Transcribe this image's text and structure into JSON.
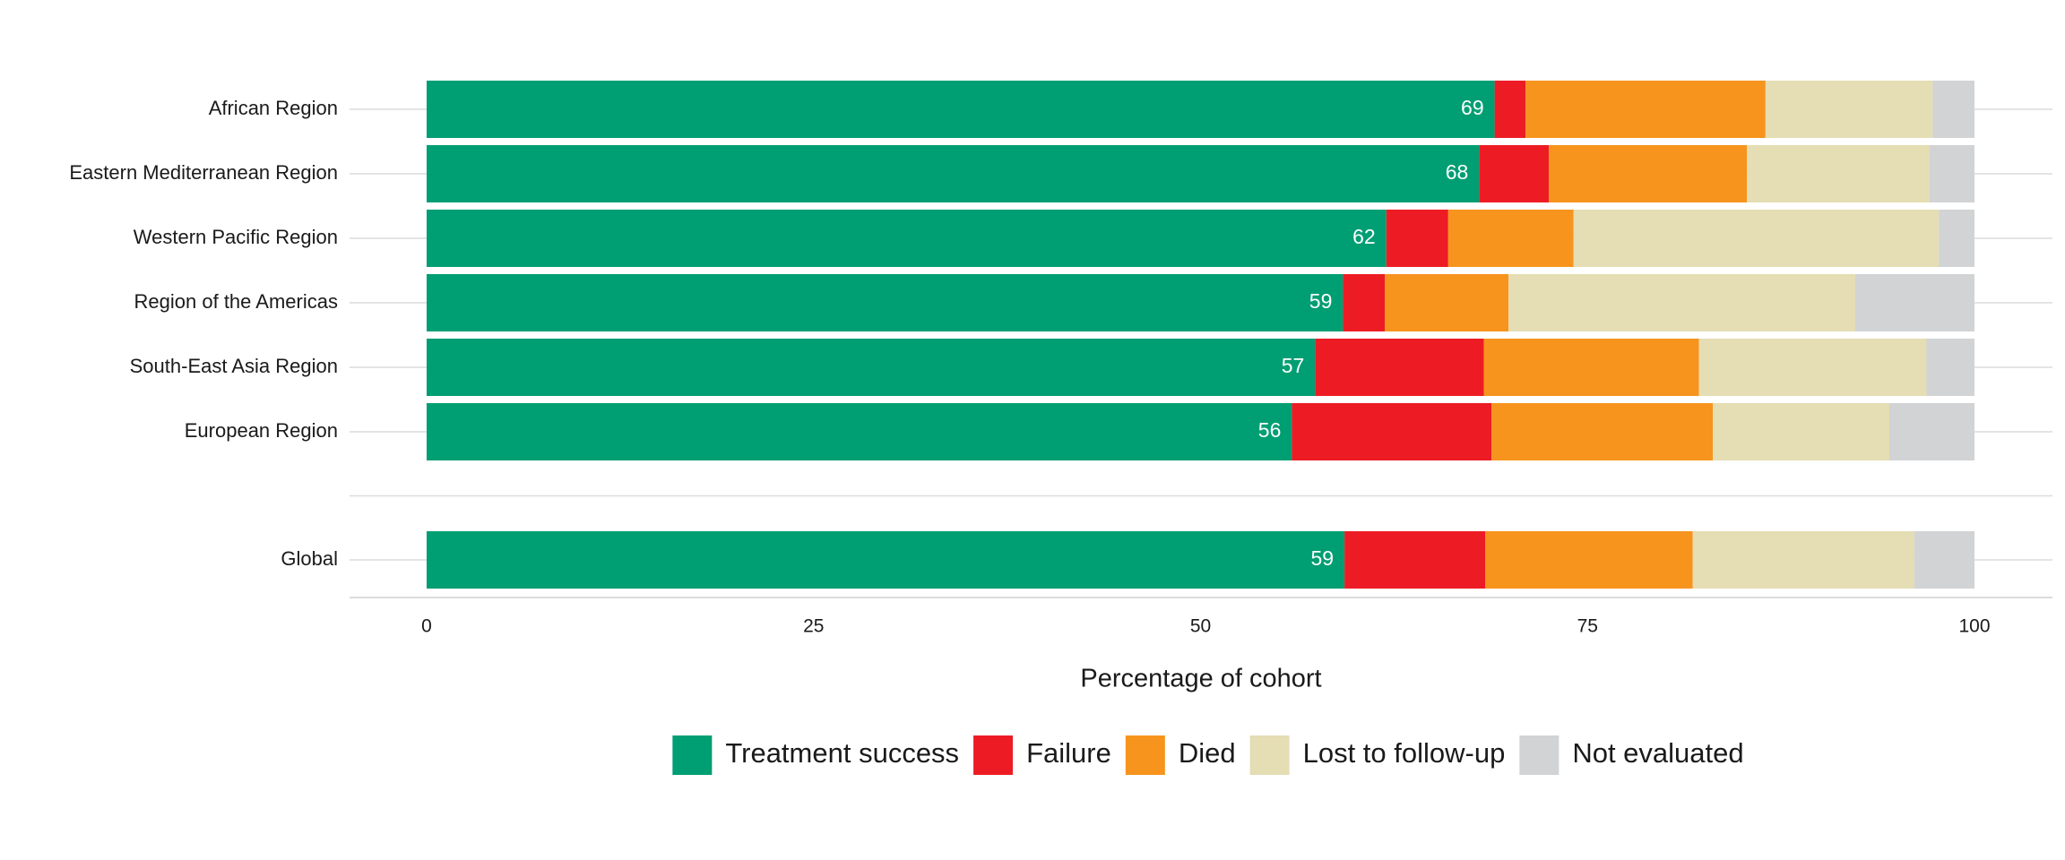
{
  "chart_data": {
    "type": "stacked-bar",
    "orientation": "horizontal",
    "x_label": "Percentage of cohort",
    "categories": [
      "African Region",
      "Eastern Mediterranean Region",
      "Western Pacific Region",
      "Region of the Americas",
      "South-East Asia Region",
      "European Region",
      "Global"
    ],
    "series": [
      {
        "name": "Treatment success",
        "color": "#009e73",
        "values": [
          69,
          68,
          62,
          59.2,
          57.4,
          55.9,
          59.3
        ],
        "value_labels": [
          "69",
          "68",
          "62",
          "59",
          "57",
          "56",
          "59"
        ]
      },
      {
        "name": "Failure",
        "color": "#ed1c24",
        "values": [
          2,
          4.5,
          4,
          2.7,
          10.9,
          12.9,
          9.1
        ]
      },
      {
        "name": "Died",
        "color": "#f7941d",
        "values": [
          15.5,
          12.8,
          8.1,
          8,
          13.9,
          14.3,
          13.4
        ]
      },
      {
        "name": "Lost to follow-up",
        "color": "#e5ddb3",
        "values": [
          10.8,
          11.8,
          23.6,
          22.4,
          14.7,
          11.4,
          14.3
        ]
      },
      {
        "name": "Not evaluated",
        "color": "#d1d3d4",
        "values": [
          2.7,
          2.9,
          2.3,
          7.7,
          3.1,
          5.5,
          3.9
        ]
      }
    ],
    "xlim": [
      0,
      100
    ],
    "xticks": [
      0,
      25,
      50,
      75,
      100
    ],
    "grid": true,
    "legend": "bottom"
  }
}
